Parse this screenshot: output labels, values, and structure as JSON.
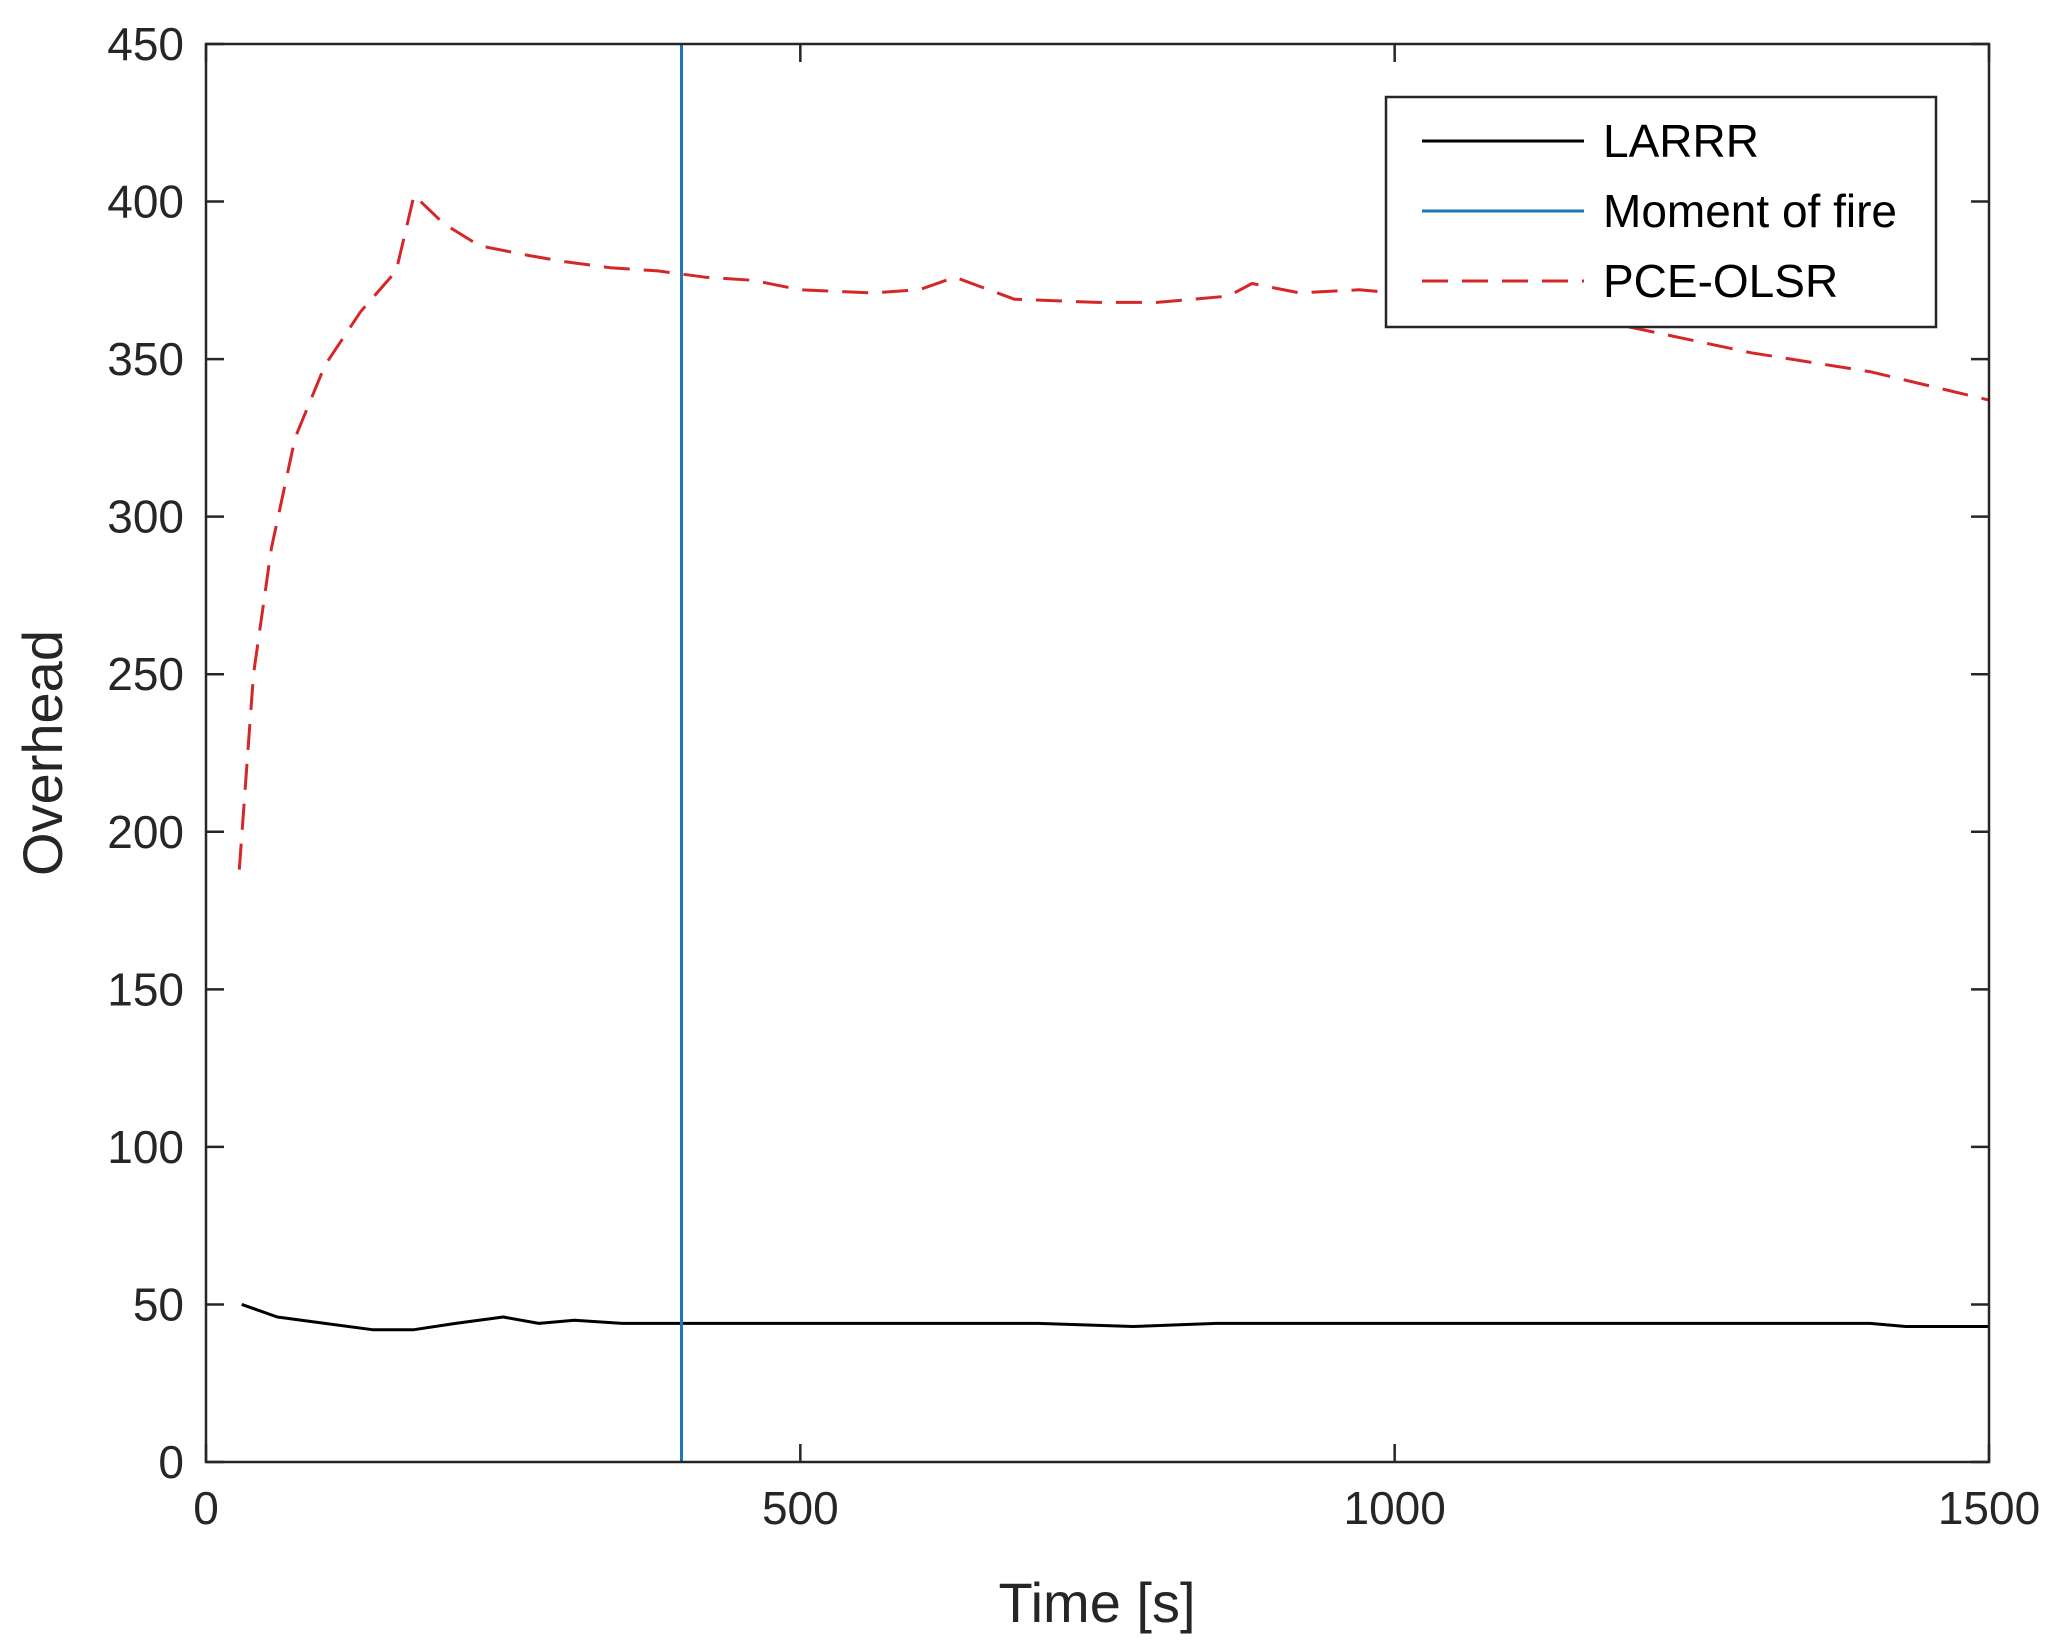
{
  "chart_data": {
    "type": "line",
    "title": "",
    "xlabel": "Time [s]",
    "ylabel": "Overhead",
    "xlim": [
      0,
      1500
    ],
    "ylim": [
      0,
      450
    ],
    "xticks": [
      0,
      500,
      1000,
      1500
    ],
    "yticks": [
      0,
      50,
      100,
      150,
      200,
      250,
      300,
      350,
      400,
      450
    ],
    "grid": false,
    "legend_position": "top-right",
    "series": [
      {
        "name": "LARRR",
        "color": "#000000",
        "style": "solid",
        "x": [
          30,
          60,
          100,
          140,
          175,
          210,
          250,
          280,
          310,
          350,
          400,
          500,
          600,
          700,
          780,
          850,
          900,
          1000,
          1100,
          1200,
          1300,
          1400,
          1430,
          1500
        ],
        "y": [
          50,
          46,
          44,
          42,
          42,
          44,
          46,
          44,
          45,
          44,
          44,
          44,
          44,
          44,
          43,
          44,
          44,
          44,
          44,
          44,
          44,
          44,
          43,
          43
        ]
      },
      {
        "name": "Moment of fire",
        "color": "#1f77b4",
        "style": "solid",
        "x": [
          400,
          400
        ],
        "y": [
          0,
          450
        ]
      },
      {
        "name": "PCE-OLSR",
        "color": "#d62728",
        "style": "dashed",
        "x": [
          28,
          40,
          55,
          75,
          100,
          130,
          160,
          175,
          200,
          230,
          270,
          300,
          340,
          380,
          420,
          460,
          500,
          560,
          600,
          630,
          680,
          750,
          800,
          860,
          880,
          920,
          970,
          1000,
          1050,
          1100,
          1150,
          1200,
          1250,
          1300,
          1400,
          1500
        ],
        "y": [
          188,
          250,
          290,
          325,
          348,
          365,
          378,
          402,
          393,
          386,
          383,
          381,
          379,
          378,
          376,
          375,
          372,
          371,
          372,
          376,
          369,
          368,
          368,
          370,
          374,
          371,
          372,
          371,
          368,
          366,
          363,
          360,
          356,
          352,
          346,
          337
        ]
      }
    ]
  }
}
